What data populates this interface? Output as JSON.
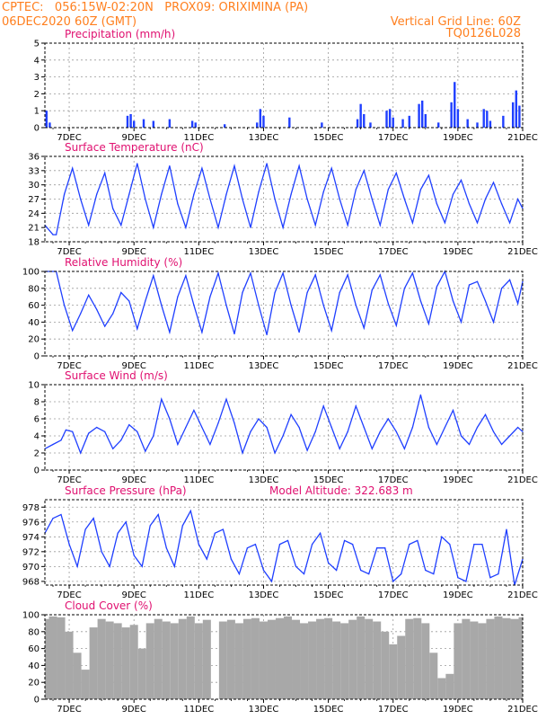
{
  "header": {
    "left_line1": "CPTEC:   056:15W-02:20N   PROX09: ORIXIMINA (PA)",
    "left_line2": "06DEC2020 60Z (GMT)",
    "right_line1": "Vertical Grid Line: 60Z",
    "right_line2": "TQ0126L028"
  },
  "colors": {
    "header": "#ff7f1e",
    "title": "#e01070",
    "series": "#1f3fff",
    "cloud": "#a8a8a8",
    "grid": "#9a9a9a"
  },
  "x_axis": {
    "ticks": [
      7,
      9,
      11,
      13,
      15,
      17,
      19,
      21
    ],
    "tick_labels": [
      "7DEC",
      "9DEC",
      "11DEC",
      "13DEC",
      "15DEC",
      "17DEC",
      "19DEC",
      "21DEC"
    ],
    "range": [
      6.25,
      21
    ]
  },
  "chart_data": [
    {
      "type": "bar",
      "title": "Precipitation (mm/h)",
      "ylim": [
        0,
        5
      ],
      "yticks": [
        0,
        1,
        2,
        3,
        4,
        5
      ],
      "grid": true,
      "x_unit": "day of December 2020",
      "x": [
        6.3,
        6.4,
        8.8,
        8.9,
        9.0,
        9.3,
        9.6,
        10.1,
        10.8,
        10.9,
        11.8,
        12.8,
        12.9,
        13.0,
        13.8,
        14.8,
        15.9,
        16.0,
        16.1,
        16.3,
        16.8,
        16.9,
        17.0,
        17.3,
        17.5,
        17.8,
        17.9,
        18.0,
        18.4,
        18.8,
        18.9,
        19.0,
        19.3,
        19.6,
        19.8,
        19.9,
        20.0,
        20.4,
        20.7,
        20.8,
        20.9
      ],
      "values": [
        1.0,
        0.3,
        0.7,
        0.8,
        0.4,
        0.5,
        0.4,
        0.5,
        0.4,
        0.3,
        0.2,
        0.3,
        1.1,
        0.7,
        0.6,
        0.3,
        0.5,
        1.4,
        0.8,
        0.3,
        1.0,
        1.1,
        0.6,
        0.5,
        0.7,
        1.4,
        1.6,
        0.8,
        0.3,
        1.5,
        2.7,
        1.1,
        0.5,
        0.3,
        1.1,
        1.0,
        0.4,
        0.7,
        1.5,
        2.2,
        1.3
      ]
    },
    {
      "type": "line",
      "title": "Surface Temperature (nC)",
      "ylim": [
        18,
        36
      ],
      "yticks": [
        18,
        21,
        24,
        27,
        30,
        33,
        36
      ],
      "grid": true,
      "x": [
        6.25,
        6.5,
        6.6,
        6.85,
        7.1,
        7.35,
        7.6,
        7.85,
        8.1,
        8.35,
        8.6,
        8.85,
        9.1,
        9.35,
        9.6,
        9.85,
        10.1,
        10.35,
        10.6,
        10.85,
        11.1,
        11.35,
        11.6,
        11.85,
        12.1,
        12.35,
        12.6,
        12.85,
        13.1,
        13.35,
        13.6,
        13.85,
        14.1,
        14.35,
        14.6,
        14.85,
        15.1,
        15.35,
        15.6,
        15.85,
        16.1,
        16.35,
        16.6,
        16.85,
        17.1,
        17.35,
        17.6,
        17.85,
        18.1,
        18.35,
        18.6,
        18.85,
        19.1,
        19.35,
        19.6,
        19.85,
        20.1,
        20.35,
        20.6,
        20.85,
        21.0
      ],
      "values": [
        21.5,
        19.5,
        19.5,
        28,
        33.5,
        27,
        21.5,
        28,
        32.5,
        25,
        21.5,
        28,
        34.5,
        27,
        21,
        28,
        34,
        26,
        21,
        28,
        33.5,
        27,
        21,
        28,
        34,
        27,
        21,
        28.5,
        34.5,
        27,
        21,
        28,
        34,
        27,
        21.5,
        28.5,
        33.5,
        27,
        21.5,
        29,
        33,
        27,
        21.5,
        29,
        32.5,
        27,
        22,
        29,
        32,
        26,
        22,
        28,
        31,
        26,
        22,
        27,
        30.5,
        26,
        22,
        27,
        25
      ]
    },
    {
      "type": "line",
      "title": "Relative Humidity (%)",
      "ylim": [
        0,
        100
      ],
      "yticks": [
        0,
        20,
        40,
        60,
        80,
        100
      ],
      "grid": true,
      "x": [
        6.25,
        6.6,
        6.85,
        7.1,
        7.35,
        7.6,
        7.85,
        8.1,
        8.35,
        8.6,
        8.85,
        9.1,
        9.35,
        9.6,
        9.85,
        10.1,
        10.35,
        10.6,
        10.85,
        11.1,
        11.35,
        11.6,
        11.85,
        12.1,
        12.35,
        12.6,
        12.85,
        13.1,
        13.35,
        13.6,
        13.85,
        14.1,
        14.35,
        14.6,
        14.85,
        15.1,
        15.35,
        15.6,
        15.85,
        16.1,
        16.35,
        16.6,
        16.85,
        17.1,
        17.35,
        17.6,
        17.85,
        18.1,
        18.35,
        18.6,
        18.85,
        19.1,
        19.35,
        19.6,
        19.85,
        20.1,
        20.35,
        20.6,
        20.85,
        21.0
      ],
      "values": [
        100,
        100,
        60,
        30,
        50,
        72,
        55,
        35,
        50,
        75,
        65,
        32,
        65,
        95,
        60,
        28,
        70,
        95,
        60,
        28,
        70,
        98,
        60,
        26,
        75,
        98,
        60,
        25,
        75,
        98,
        60,
        28,
        75,
        96,
        60,
        30,
        75,
        96,
        60,
        33,
        78,
        96,
        62,
        36,
        80,
        98,
        65,
        38,
        82,
        100,
        65,
        40,
        84,
        88,
        65,
        40,
        80,
        90,
        62,
        88
      ]
    },
    {
      "type": "line",
      "title": "Surface Wind (m/s)",
      "ylim": [
        0,
        10
      ],
      "yticks": [
        0,
        2,
        4,
        6,
        8,
        10
      ],
      "grid": true,
      "x": [
        6.25,
        6.5,
        6.75,
        6.9,
        7.1,
        7.35,
        7.6,
        7.85,
        8.1,
        8.35,
        8.6,
        8.85,
        9.1,
        9.35,
        9.6,
        9.85,
        10.1,
        10.35,
        10.6,
        10.85,
        11.1,
        11.35,
        11.6,
        11.85,
        12.1,
        12.35,
        12.6,
        12.85,
        13.1,
        13.35,
        13.6,
        13.85,
        14.1,
        14.35,
        14.6,
        14.85,
        15.1,
        15.35,
        15.6,
        15.85,
        16.1,
        16.35,
        16.6,
        16.85,
        17.1,
        17.35,
        17.6,
        17.85,
        18.1,
        18.35,
        18.6,
        18.85,
        19.1,
        19.35,
        19.6,
        19.85,
        20.1,
        20.35,
        20.6,
        20.85,
        21.0
      ],
      "values": [
        2.5,
        3.0,
        3.5,
        4.7,
        4.5,
        2.0,
        4.3,
        5.0,
        4.5,
        2.5,
        3.5,
        5.3,
        4.5,
        2.2,
        4.0,
        8.3,
        6.0,
        3.0,
        5.0,
        7.0,
        5.0,
        3.0,
        5.5,
        8.3,
        5.5,
        2.0,
        4.5,
        6.0,
        5.0,
        2.0,
        4.0,
        6.5,
        5.0,
        2.3,
        4.5,
        7.5,
        5.0,
        2.5,
        4.5,
        7.5,
        5.0,
        2.5,
        4.5,
        6.0,
        4.5,
        2.5,
        5.0,
        8.8,
        5.0,
        3.0,
        5.0,
        7.0,
        4.0,
        3.0,
        5.0,
        6.5,
        4.5,
        3.0,
        4.0,
        5.0,
        4.5
      ]
    },
    {
      "type": "line",
      "title": "Surface Pressure (hPa)",
      "annotation": "Model Altitude: 322.683 m",
      "ylim": [
        967.5,
        979
      ],
      "yticks": [
        968,
        970,
        972,
        974,
        976,
        978
      ],
      "grid": true,
      "x": [
        6.25,
        6.5,
        6.75,
        7.0,
        7.25,
        7.5,
        7.75,
        8.0,
        8.25,
        8.5,
        8.75,
        9.0,
        9.25,
        9.5,
        9.75,
        10.0,
        10.25,
        10.5,
        10.75,
        11.0,
        11.25,
        11.5,
        11.75,
        12.0,
        12.25,
        12.5,
        12.75,
        13.0,
        13.25,
        13.5,
        13.75,
        14.0,
        14.25,
        14.5,
        14.75,
        15.0,
        15.25,
        15.5,
        15.75,
        16.0,
        16.25,
        16.5,
        16.75,
        17.0,
        17.25,
        17.5,
        17.75,
        18.0,
        18.25,
        18.5,
        18.75,
        19.0,
        19.25,
        19.5,
        19.75,
        20.0,
        20.25,
        20.5,
        20.75,
        21.0
      ],
      "values": [
        974.5,
        976.5,
        977,
        973,
        970,
        975,
        976.5,
        972,
        970,
        974.5,
        976,
        971.5,
        970,
        975.5,
        977,
        972.5,
        970,
        975.5,
        977.5,
        973,
        971,
        974.5,
        975,
        971,
        969,
        972.5,
        973,
        969.5,
        968,
        973,
        973.5,
        970,
        969,
        973,
        974.5,
        970.5,
        969.5,
        973.5,
        973,
        969.5,
        969,
        972.5,
        972.5,
        968,
        969,
        973,
        973.5,
        969.5,
        969,
        974,
        973,
        968.5,
        968,
        973,
        973,
        968.5,
        969,
        975,
        967.5,
        971
      ]
    },
    {
      "type": "bar",
      "title": "Cloud Cover (%)",
      "ylim": [
        0,
        100
      ],
      "yticks": [
        0,
        20,
        40,
        60,
        80,
        100
      ],
      "grid": true,
      "x": [
        6.25,
        6.5,
        6.75,
        7.0,
        7.25,
        7.5,
        7.75,
        8.0,
        8.25,
        8.5,
        8.75,
        9.0,
        9.25,
        9.5,
        9.75,
        10.0,
        10.25,
        10.5,
        10.75,
        11.0,
        11.25,
        11.5,
        11.75,
        12.0,
        12.25,
        12.5,
        12.75,
        13.0,
        13.25,
        13.5,
        13.75,
        14.0,
        14.25,
        14.5,
        14.75,
        15.0,
        15.25,
        15.5,
        15.75,
        16.0,
        16.25,
        16.5,
        16.75,
        17.0,
        17.25,
        17.5,
        17.75,
        18.0,
        18.25,
        18.5,
        18.75,
        19.0,
        19.25,
        19.5,
        19.75,
        20.0,
        20.25,
        20.5,
        20.75,
        21.0
      ],
      "values": [
        95,
        98,
        97,
        80,
        55,
        35,
        85,
        95,
        92,
        90,
        85,
        88,
        60,
        90,
        95,
        92,
        90,
        95,
        98,
        90,
        94,
        0,
        92,
        94,
        90,
        95,
        96,
        92,
        94,
        96,
        98,
        94,
        90,
        92,
        95,
        96,
        92,
        90,
        94,
        98,
        95,
        92,
        80,
        65,
        75,
        95,
        96,
        90,
        55,
        25,
        30,
        90,
        95,
        92,
        90,
        95,
        98,
        96,
        95,
        97
      ]
    }
  ]
}
